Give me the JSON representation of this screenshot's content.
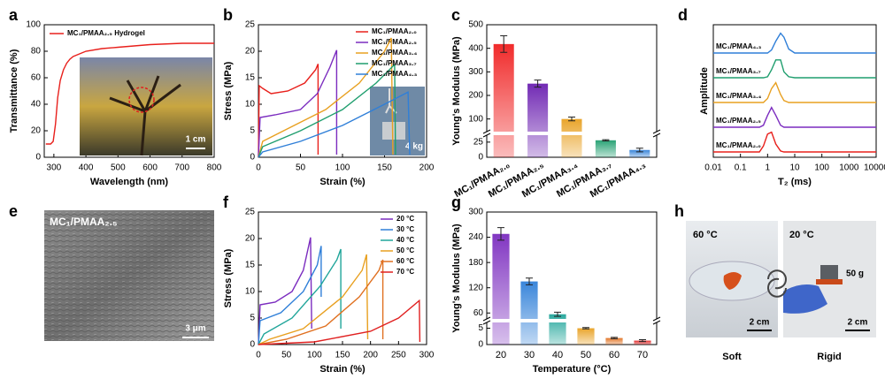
{
  "chart_data": [
    {
      "panel": "a",
      "type": "line",
      "xlabel": "Wavelength (nm)",
      "ylabel": "Transmittance (%)",
      "xlim": [
        270,
        800
      ],
      "xticks": [
        300,
        400,
        500,
        600,
        700,
        800
      ],
      "ylim": [
        0,
        100
      ],
      "yticks": [
        0,
        20,
        40,
        60,
        80,
        100
      ],
      "legend": "upper left",
      "inset_scale_bar": "1 cm",
      "series": [
        {
          "name": "MC₁/PMAA₂.₅ Hydrogel",
          "color": "#e8201c",
          "x": [
            275,
            290,
            298,
            305,
            312,
            320,
            330,
            340,
            350,
            360,
            380,
            400,
            450,
            500,
            600,
            700,
            800
          ],
          "values": [
            10,
            10,
            12,
            25,
            45,
            58,
            66,
            71,
            74,
            76,
            78,
            80,
            82,
            83,
            85,
            86,
            86
          ]
        }
      ]
    },
    {
      "panel": "b",
      "type": "line",
      "xlabel": "Strain (%)",
      "ylabel": "Stress (MPa)",
      "xlim": [
        0,
        200
      ],
      "xticks": [
        0,
        50,
        100,
        150,
        200
      ],
      "ylim": [
        0,
        25
      ],
      "yticks": [
        0,
        5,
        10,
        15,
        20,
        25
      ],
      "legend": "upper right",
      "inset_label": "4 kg",
      "series": [
        {
          "name": "MC₁/PMAA₂.₀",
          "color": "#e8201c",
          "x": [
            0,
            1,
            5,
            15,
            35,
            55,
            68,
            71,
            71
          ],
          "values": [
            0,
            13.5,
            13,
            12,
            12.5,
            14,
            16.5,
            17.6,
            0.5
          ]
        },
        {
          "name": "MC₁/PMAA₂.₅",
          "color": "#7b2cbf",
          "x": [
            0,
            2,
            20,
            50,
            70,
            85,
            93,
            93
          ],
          "values": [
            0,
            7.5,
            8,
            9,
            12,
            17,
            20.2,
            0.5
          ]
        },
        {
          "name": "MC₁/PMAA₃.₄",
          "color": "#e8a020",
          "x": [
            0,
            5,
            30,
            80,
            120,
            150,
            158,
            160
          ],
          "values": [
            0,
            3,
            5,
            9,
            14,
            20,
            22.5,
            0.5
          ]
        },
        {
          "name": "MC₁/PMAA₃.₇",
          "color": "#1f9e6e",
          "x": [
            0,
            5,
            50,
            100,
            140,
            162,
            163
          ],
          "values": [
            0,
            2,
            5,
            9,
            14,
            17.5,
            0.5
          ]
        },
        {
          "name": "MC₁/PMAA₄.₃",
          "color": "#2f7fd8",
          "x": [
            0,
            5,
            50,
            100,
            150,
            178,
            180
          ],
          "values": [
            0,
            1,
            3,
            6,
            10,
            12.3,
            0.5
          ]
        }
      ]
    },
    {
      "panel": "c",
      "type": "bar",
      "ylabel": "Young's Modulus (MPa)",
      "categories": [
        "MC₁/PMAA₂.₀",
        "MC₁/PMAA₂.₅",
        "MC₁/PMAA₃.₄",
        "MC₁/PMAA₃.₇",
        "MC₁/PMAA₄.₃"
      ],
      "values": [
        418,
        250,
        100,
        28,
        12
      ],
      "errors": [
        35,
        15,
        8,
        1,
        3
      ],
      "colors": [
        "#f02020",
        "#6a1fb0",
        "#e8a020",
        "#1f9e6e",
        "#2f7fd8"
      ],
      "ylim": [
        0,
        500
      ],
      "ybreak": [
        35,
        50
      ],
      "yticks": [
        0,
        25,
        100,
        200,
        300,
        400,
        500
      ],
      "rotate_labels": true
    },
    {
      "panel": "d",
      "type": "line",
      "log_x": true,
      "xlabel": "T₂ (ms)",
      "ylabel": "Amplitude",
      "xlim": [
        0.01,
        10000
      ],
      "xticks": [
        0.01,
        0.1,
        1,
        10,
        100,
        1000,
        10000
      ],
      "legend": "inline",
      "series": [
        {
          "name": "MC₁/PMAA₂.₀",
          "color": "#e8201c",
          "x": [
            0.01,
            0.5,
            0.7,
            1,
            1.4,
            2,
            3,
            4,
            6,
            10,
            100,
            10000
          ],
          "values": [
            0,
            0,
            0.3,
            0.9,
            1,
            0.4,
            0.05,
            0,
            0,
            0,
            0,
            0
          ]
        },
        {
          "name": "MC₁/PMAA₂.₅",
          "color": "#7b2cbf",
          "x": [
            0.01,
            0.5,
            0.7,
            1,
            1.4,
            2,
            3,
            4,
            6,
            10,
            100,
            10000
          ],
          "values": [
            0,
            0,
            0.1,
            0.6,
            1,
            0.6,
            0.1,
            0,
            0,
            0,
            0,
            0
          ]
        },
        {
          "name": "MC₁/PMAA₃.₄",
          "color": "#e8a020",
          "x": [
            0.01,
            0.5,
            0.7,
            1,
            1.4,
            2,
            3,
            4,
            6,
            10,
            100,
            10000
          ],
          "values": [
            0,
            0,
            0,
            0.2,
            0.7,
            1,
            0.4,
            0.1,
            0,
            0,
            0,
            0
          ]
        },
        {
          "name": "MC₁/PMAA₃.₇",
          "color": "#1f9e6e",
          "x": [
            0.01,
            0.5,
            0.7,
            1,
            1.4,
            2,
            3,
            4,
            6,
            10,
            100,
            10000
          ],
          "values": [
            0,
            0,
            0,
            0.05,
            0.4,
            0.9,
            0.9,
            0.3,
            0.05,
            0,
            0,
            0
          ]
        },
        {
          "name": "MC₁/PMAA₄.₃",
          "color": "#2f7fd8",
          "x": [
            0.01,
            0.5,
            0.7,
            1,
            1.4,
            2,
            3,
            4,
            6,
            10,
            100,
            10000
          ],
          "values": [
            0,
            0,
            0,
            0,
            0.15,
            0.6,
            1,
            0.8,
            0.2,
            0,
            0,
            0
          ]
        }
      ]
    },
    {
      "panel": "f",
      "type": "line",
      "xlabel": "Strain (%)",
      "ylabel": "Stress (MPa)",
      "xlim": [
        0,
        300
      ],
      "xticks": [
        0,
        50,
        100,
        150,
        200,
        250,
        300
      ],
      "ylim": [
        0,
        25
      ],
      "yticks": [
        0,
        5,
        10,
        15,
        20,
        25
      ],
      "legend": "upper right",
      "series": [
        {
          "name": "20 °C",
          "color": "#7b2cbf",
          "x": [
            0,
            3,
            30,
            60,
            80,
            93,
            95
          ],
          "values": [
            0,
            7.5,
            8,
            10,
            14,
            20.2,
            3
          ]
        },
        {
          "name": "30 °C",
          "color": "#2f7fd8",
          "x": [
            0,
            3,
            40,
            80,
            105,
            112,
            112
          ],
          "values": [
            0,
            4.5,
            6,
            10,
            15,
            18.6,
            9
          ]
        },
        {
          "name": "40 °C",
          "color": "#20a59a",
          "x": [
            0,
            10,
            60,
            110,
            140,
            147,
            147
          ],
          "values": [
            0,
            2,
            5,
            11,
            16,
            18,
            3
          ]
        },
        {
          "name": "50 °C",
          "color": "#e8a020",
          "x": [
            0,
            20,
            80,
            150,
            185,
            193,
            195
          ],
          "values": [
            0,
            1,
            3,
            9,
            14,
            17,
            1
          ]
        },
        {
          "name": "60 °C",
          "color": "#e07020",
          "x": [
            0,
            50,
            120,
            180,
            215,
            222,
            222
          ],
          "values": [
            0,
            1,
            3.5,
            9,
            14,
            16,
            1
          ]
        },
        {
          "name": "70 °C",
          "color": "#e02020",
          "x": [
            0,
            100,
            200,
            250,
            287,
            288
          ],
          "values": [
            0,
            0.5,
            2.5,
            5,
            8.3,
            0.5
          ]
        }
      ]
    },
    {
      "panel": "g",
      "type": "bar",
      "xlabel": "Temperature (°C)",
      "ylabel": "Young's Modulus (MPa)",
      "categories": [
        "20",
        "30",
        "40",
        "50",
        "60",
        "70"
      ],
      "values": [
        248,
        135,
        57,
        5,
        2,
        1.2
      ],
      "errors": [
        15,
        8,
        5,
        0.2,
        0.2,
        0.3
      ],
      "colors": [
        "#7b2cbf",
        "#2f7fd8",
        "#20a59a",
        "#e8a020",
        "#e07020",
        "#e02020"
      ],
      "ylim": [
        0,
        300
      ],
      "ybreak": [
        6.5,
        48
      ],
      "yticks": [
        0,
        5,
        60,
        120,
        180,
        240,
        300
      ]
    }
  ],
  "images": [
    {
      "panel": "e",
      "label": "MC₁/PMAA₂.₅",
      "scale_bar": "3 μm"
    },
    {
      "panel": "h",
      "photos": [
        {
          "temperature": "60 °C",
          "scale_bar": "2 cm",
          "caption": "Soft"
        },
        {
          "temperature": "20 °C",
          "load": "50 g",
          "scale_bar": "2 cm",
          "caption": "Rigid"
        }
      ]
    }
  ]
}
